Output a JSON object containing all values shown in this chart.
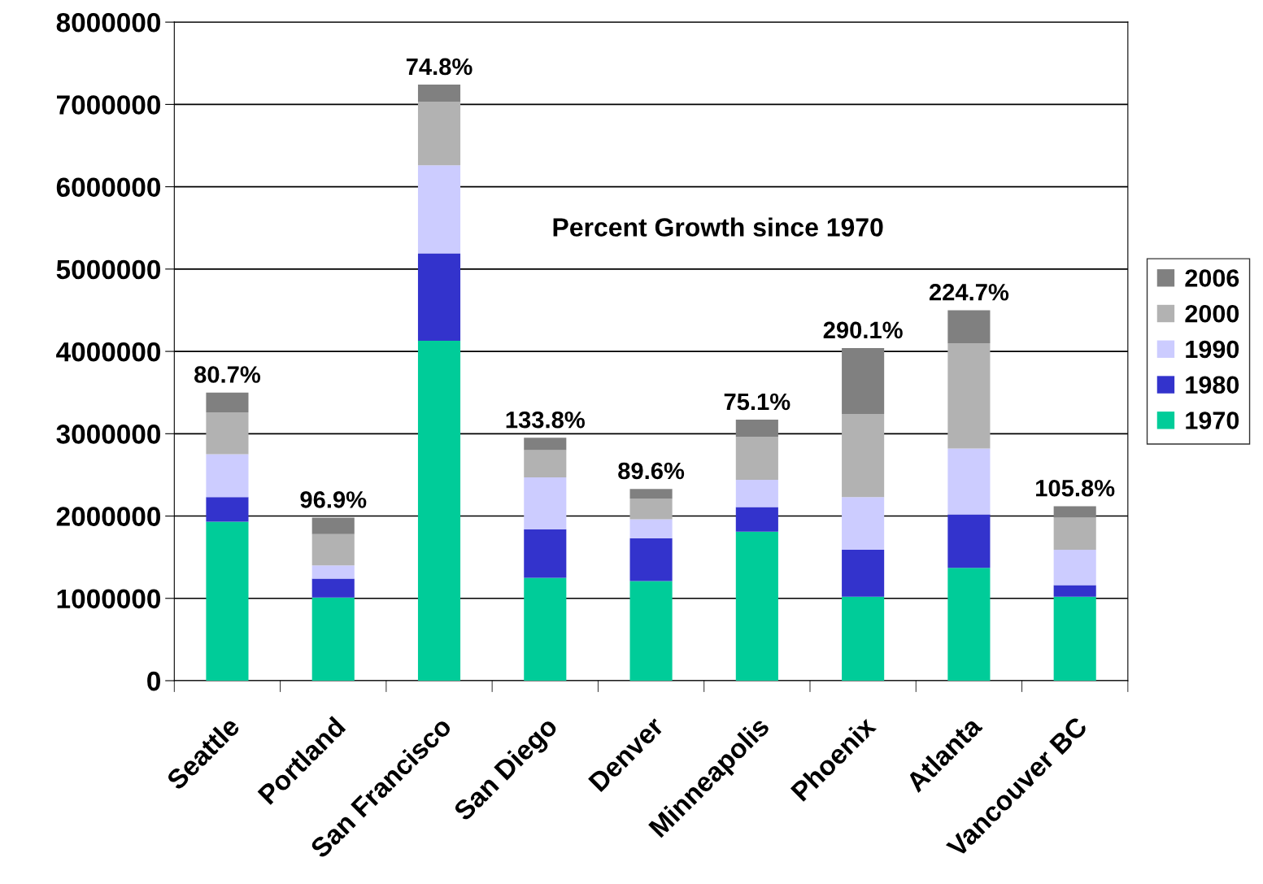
{
  "chart_data": {
    "type": "bar",
    "stacked": true,
    "categories": [
      "Seattle",
      "Portland",
      "San Francisco",
      "San Diego",
      "Denver",
      "Minneapolis",
      "Phoenix",
      "Atlanta",
      "Vancouver BC"
    ],
    "series": [
      {
        "name": "1970",
        "color": "#00cc99",
        "values": [
          1930000,
          1010000,
          4130000,
          1250000,
          1210000,
          1810000,
          1020000,
          1370000,
          1020000
        ]
      },
      {
        "name": "1980",
        "color": "#3333cc",
        "values": [
          300000,
          230000,
          1060000,
          590000,
          520000,
          300000,
          570000,
          650000,
          140000
        ]
      },
      {
        "name": "1990",
        "color": "#ccccff",
        "values": [
          520000,
          160000,
          1070000,
          630000,
          230000,
          330000,
          640000,
          800000,
          430000
        ]
      },
      {
        "name": "2000",
        "color": "#b2b2b2",
        "values": [
          510000,
          380000,
          770000,
          330000,
          250000,
          520000,
          1010000,
          1280000,
          390000
        ]
      },
      {
        "name": "2006",
        "color": "#808080",
        "values": [
          240000,
          200000,
          210000,
          150000,
          120000,
          210000,
          800000,
          400000,
          140000
        ]
      }
    ],
    "annotations": [
      "Percent Growth since 1970",
      {
        "text": "80.7%",
        "x": "Seattle",
        "y": 3500000
      },
      {
        "text": "96.9%",
        "x": "Portland",
        "y": 1980000
      },
      {
        "text": "74.8%",
        "x": "San Francisco",
        "y": 7240000
      },
      {
        "text": "133.8%",
        "x": "San Diego",
        "y": 2950000
      },
      {
        "text": "89.6%",
        "x": "Denver",
        "y": 2330000
      },
      {
        "text": "75.1%",
        "x": "Minneapolis",
        "y": 3170000
      },
      {
        "text": "290.1%",
        "x": "Phoenix",
        "y": 4040000
      },
      {
        "text": "224.7%",
        "x": "Atlanta",
        "y": 4500000
      },
      {
        "text": "105.8%",
        "x": "Vancouver BC",
        "y": 2120000
      }
    ],
    "ylim": [
      0,
      8000000
    ],
    "yticks": [
      0,
      1000000,
      2000000,
      3000000,
      4000000,
      5000000,
      6000000,
      7000000,
      8000000
    ],
    "grid": "y",
    "legend": "right"
  }
}
